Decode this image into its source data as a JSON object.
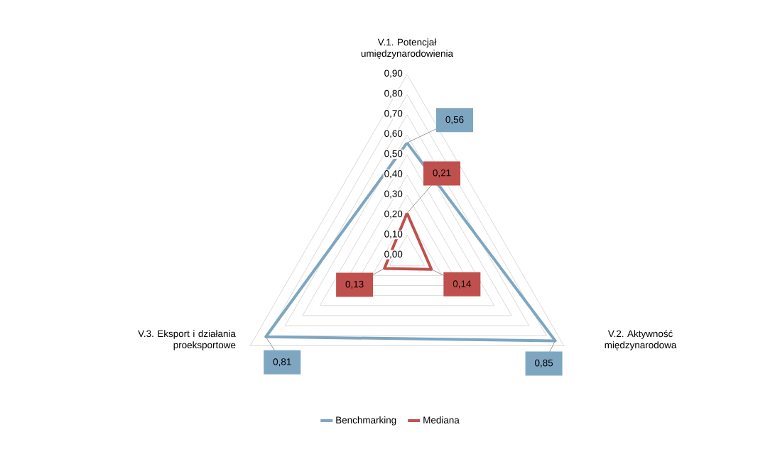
{
  "chart_data": {
    "type": "radar",
    "categories": [
      "V.1. Potencjał umiędzynarodowienia",
      "V.2. Aktywność międzynarodowa",
      "V.3. Eksport i działania proeksportowe"
    ],
    "series": [
      {
        "name": "Benchmarking",
        "color": "#7ea6c1",
        "values": [
          0.56,
          0.85,
          0.81
        ],
        "value_labels": [
          "0,56",
          "0,85",
          "0,81"
        ]
      },
      {
        "name": "Mediana",
        "color": "#c0504d",
        "values": [
          0.21,
          0.14,
          0.13
        ],
        "value_labels": [
          "0,21",
          "0,14",
          "0,13"
        ]
      }
    ],
    "ylim": [
      0,
      0.9
    ],
    "yticks": [
      {
        "value": 0,
        "label": "0,00"
      },
      {
        "value": 0.1,
        "label": "0,10"
      },
      {
        "value": 0.2,
        "label": "0,20"
      },
      {
        "value": 0.3,
        "label": "0,30"
      },
      {
        "value": 0.4,
        "label": "0,40"
      },
      {
        "value": 0.5,
        "label": "0,50"
      },
      {
        "value": 0.6,
        "label": "0,60"
      },
      {
        "value": 0.7,
        "label": "0,70"
      },
      {
        "value": 0.8,
        "label": "0,80"
      },
      {
        "value": 0.9,
        "label": "0,90"
      }
    ],
    "grid": true,
    "legend": "bottom",
    "marker": "none",
    "line_style": "solid"
  }
}
